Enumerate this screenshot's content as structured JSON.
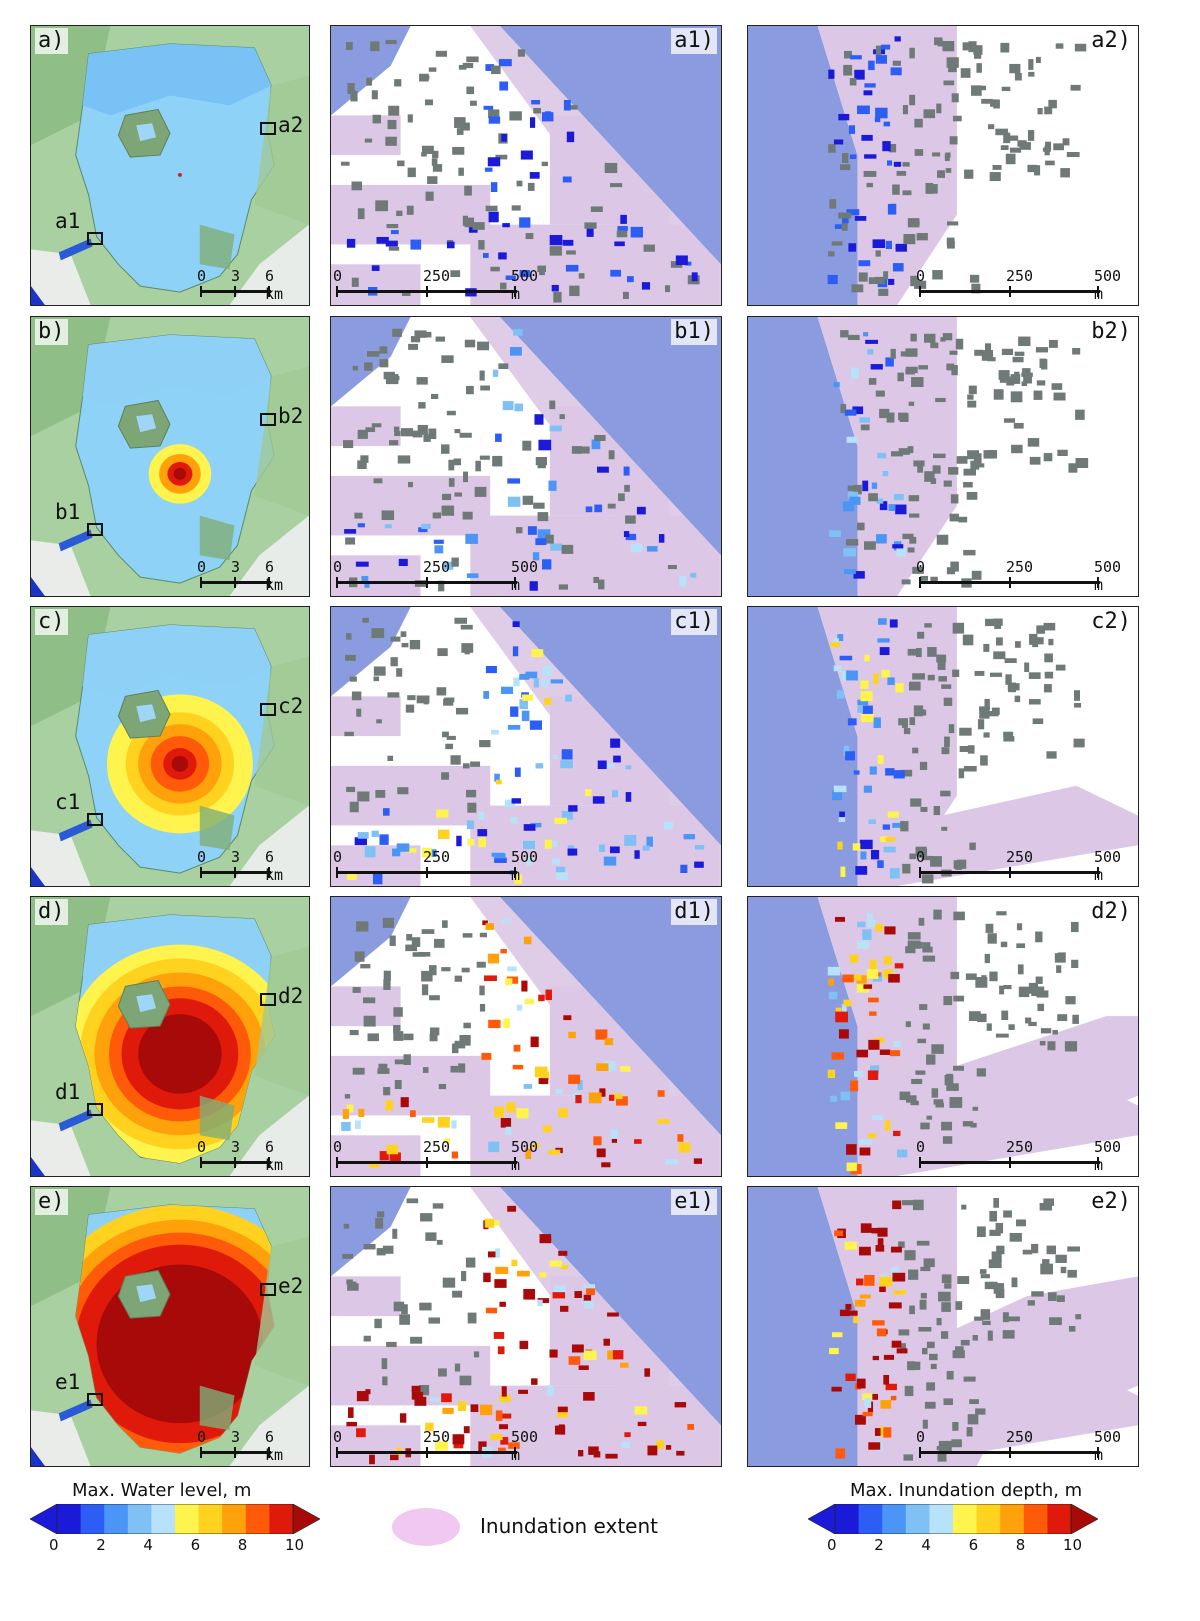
{
  "rows": [
    {
      "id": "a",
      "panels": [
        "a)",
        "a1)",
        "a2)"
      ],
      "markers": [
        "a2",
        "a1"
      ]
    },
    {
      "id": "b",
      "panels": [
        "b)",
        "b1)",
        "b2)"
      ],
      "markers": [
        "b2",
        "b1"
      ]
    },
    {
      "id": "c",
      "panels": [
        "c)",
        "c1)",
        "c2)"
      ],
      "markers": [
        "c2",
        "c1"
      ]
    },
    {
      "id": "d",
      "panels": [
        "d)",
        "d1)",
        "d2)"
      ],
      "markers": [
        "d2",
        "d1"
      ]
    },
    {
      "id": "e",
      "panels": [
        "e)",
        "e1)",
        "e2)"
      ],
      "markers": [
        "e2",
        "e1"
      ]
    }
  ],
  "scale_km": {
    "labels": [
      "0",
      "3",
      "6 km"
    ]
  },
  "scale_m": {
    "labels": [
      "0",
      "250",
      "500 m"
    ]
  },
  "legend": {
    "water_title": "Max. Water level, m",
    "water_ticks": [
      "0",
      "2",
      "4",
      "6",
      "8",
      "10"
    ],
    "inundation_title": "Max. Inundation depth, m",
    "inundation_ticks": [
      "0",
      "2",
      "4",
      "6",
      "8",
      "10"
    ],
    "extent_label": "Inundation extent"
  },
  "colors": {
    "scale": [
      "#1a1ad8",
      "#2c5ef5",
      "#4a95f5",
      "#7fc0f5",
      "#b8e2fa",
      "#fff34d",
      "#ffd21f",
      "#ffa10a",
      "#ff5a0a",
      "#e01a0a",
      "#a80a0a"
    ],
    "lake_calm": "#8fd2f7",
    "land": "#a7cfa0",
    "inundation": "#dcc8e6",
    "sea": "#8a9be0"
  }
}
